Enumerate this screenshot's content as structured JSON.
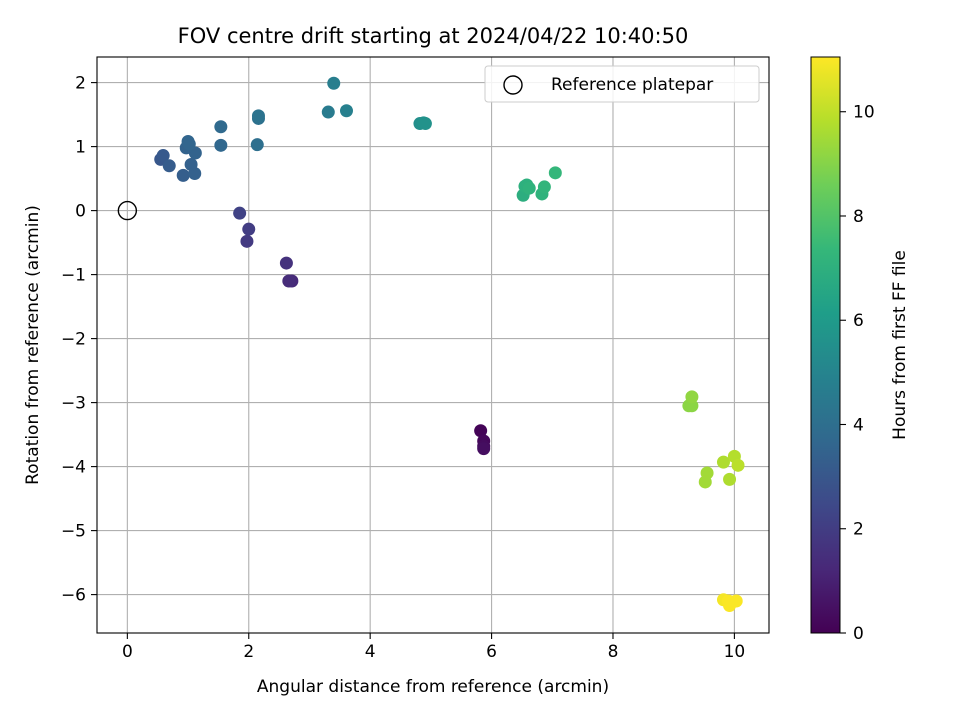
{
  "chart_data": {
    "type": "scatter",
    "title": "FOV centre drift starting at 2024/04/22 10:40:50",
    "xlabel": "Angular distance from reference (arcmin)",
    "ylabel": "Rotation from reference (arcmin)",
    "xlim": [
      -0.5,
      10.57
    ],
    "ylim": [
      -6.6,
      2.4
    ],
    "x_ticks": [
      0,
      2,
      4,
      6,
      8,
      10
    ],
    "y_ticks": [
      2,
      1,
      0,
      -1,
      -2,
      -3,
      -4,
      -5,
      -6
    ],
    "x_tick_labels": [
      "0",
      "2",
      "4",
      "6",
      "8",
      "10"
    ],
    "y_tick_labels": [
      "2",
      "1",
      "0",
      "−1",
      "−2",
      "−3",
      "−4",
      "−5",
      "−6"
    ],
    "grid": true,
    "legend": {
      "position": "top-right",
      "entries": [
        {
          "label": "Reference platepar",
          "marker": "open-circle"
        }
      ]
    },
    "reference_point": {
      "x": 0,
      "y": 0
    },
    "colorbar": {
      "label": "Hours from first FF file",
      "range": [
        0,
        11.05
      ],
      "ticks": [
        0,
        2,
        4,
        6,
        8,
        10
      ],
      "tick_labels": [
        "0",
        "2",
        "4",
        "6",
        "8",
        "10"
      ],
      "colormap": "viridis",
      "colors": [
        "#440154",
        "#482878",
        "#3e4989",
        "#31688e",
        "#26828e",
        "#1f9e89",
        "#35b779",
        "#6ece58",
        "#b5de2b",
        "#fde725"
      ]
    },
    "points": [
      {
        "x": 5.82,
        "y": -3.44,
        "t": 0.1
      },
      {
        "x": 5.87,
        "y": -3.6,
        "t": 0.2
      },
      {
        "x": 5.87,
        "y": -3.68,
        "t": 0.3
      },
      {
        "x": 5.87,
        "y": -3.72,
        "t": 0.4
      },
      {
        "x": 2.71,
        "y": -1.1,
        "t": 1.3
      },
      {
        "x": 2.66,
        "y": -1.1,
        "t": 1.4
      },
      {
        "x": 2.62,
        "y": -0.82,
        "t": 1.6
      },
      {
        "x": 1.97,
        "y": -0.48,
        "t": 1.9
      },
      {
        "x": 2.0,
        "y": -0.29,
        "t": 2.0
      },
      {
        "x": 1.85,
        "y": -0.04,
        "t": 2.2
      },
      {
        "x": 0.55,
        "y": 0.8,
        "t": 3.0
      },
      {
        "x": 0.59,
        "y": 0.86,
        "t": 3.1
      },
      {
        "x": 0.69,
        "y": 0.7,
        "t": 3.2
      },
      {
        "x": 0.92,
        "y": 0.55,
        "t": 3.3
      },
      {
        "x": 1.11,
        "y": 0.58,
        "t": 3.4
      },
      {
        "x": 1.05,
        "y": 0.72,
        "t": 3.4
      },
      {
        "x": 1.12,
        "y": 0.9,
        "t": 3.5
      },
      {
        "x": 0.97,
        "y": 0.98,
        "t": 3.5
      },
      {
        "x": 1.02,
        "y": 1.04,
        "t": 3.6
      },
      {
        "x": 1.0,
        "y": 1.08,
        "t": 3.6
      },
      {
        "x": 1.54,
        "y": 1.02,
        "t": 3.7
      },
      {
        "x": 1.54,
        "y": 1.31,
        "t": 3.8
      },
      {
        "x": 2.14,
        "y": 1.03,
        "t": 4.0
      },
      {
        "x": 2.16,
        "y": 1.44,
        "t": 4.1
      },
      {
        "x": 2.16,
        "y": 1.48,
        "t": 4.2
      },
      {
        "x": 3.31,
        "y": 1.54,
        "t": 4.6
      },
      {
        "x": 3.4,
        "y": 1.99,
        "t": 4.7
      },
      {
        "x": 3.61,
        "y": 1.56,
        "t": 4.8
      },
      {
        "x": 4.82,
        "y": 1.36,
        "t": 5.5
      },
      {
        "x": 4.88,
        "y": 1.37,
        "t": 5.6
      },
      {
        "x": 4.91,
        "y": 1.36,
        "t": 5.6
      },
      {
        "x": 6.52,
        "y": 0.24,
        "t": 6.9
      },
      {
        "x": 6.55,
        "y": 0.38,
        "t": 7.0
      },
      {
        "x": 6.58,
        "y": 0.4,
        "t": 7.0
      },
      {
        "x": 6.62,
        "y": 0.35,
        "t": 7.1
      },
      {
        "x": 6.83,
        "y": 0.26,
        "t": 7.1
      },
      {
        "x": 6.87,
        "y": 0.37,
        "t": 7.2
      },
      {
        "x": 7.05,
        "y": 0.59,
        "t": 7.3
      },
      {
        "x": 9.25,
        "y": -3.05,
        "t": 9.1
      },
      {
        "x": 9.3,
        "y": -3.05,
        "t": 9.1
      },
      {
        "x": 9.3,
        "y": -2.91,
        "t": 9.2
      },
      {
        "x": 9.55,
        "y": -4.1,
        "t": 9.5
      },
      {
        "x": 9.52,
        "y": -4.24,
        "t": 9.5
      },
      {
        "x": 9.82,
        "y": -3.93,
        "t": 9.7
      },
      {
        "x": 9.92,
        "y": -4.2,
        "t": 9.7
      },
      {
        "x": 10.0,
        "y": -3.84,
        "t": 9.8
      },
      {
        "x": 10.06,
        "y": -3.98,
        "t": 9.9
      },
      {
        "x": 9.82,
        "y": -6.08,
        "t": 10.9
      },
      {
        "x": 9.92,
        "y": -6.17,
        "t": 11.0
      },
      {
        "x": 10.03,
        "y": -6.1,
        "t": 11.0
      },
      {
        "x": 9.9,
        "y": -6.1,
        "t": 11.0
      }
    ]
  }
}
